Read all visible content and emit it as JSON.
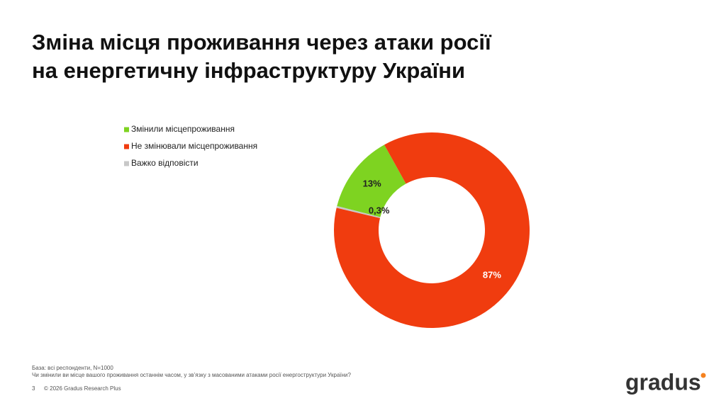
{
  "chart_data": {
    "type": "donut",
    "title": [
      "Зміна місця проживання через атаки росії",
      "на енергетичну інфраструктуру України"
    ],
    "categories": [
      "Змінили місцепроживання",
      "Не змінювали місцепроживання",
      "Важко відповісти"
    ],
    "values": [
      13,
      87,
      0.3
    ],
    "value_labels": [
      "13%",
      "87%",
      "0,3%"
    ],
    "colors": [
      "#7ed321",
      "#f03c0f",
      "#c8c8c8"
    ]
  },
  "footer": {
    "base": "База: всі респонденти, N=1000",
    "question": "Чи змінили ви місце вашого проживання останнім часом, у зв’язку з масованими атаками росії енергоструктури України?",
    "page": "3",
    "copyright": "© 2026 Gradus Research Plus",
    "logo": "gradus"
  }
}
